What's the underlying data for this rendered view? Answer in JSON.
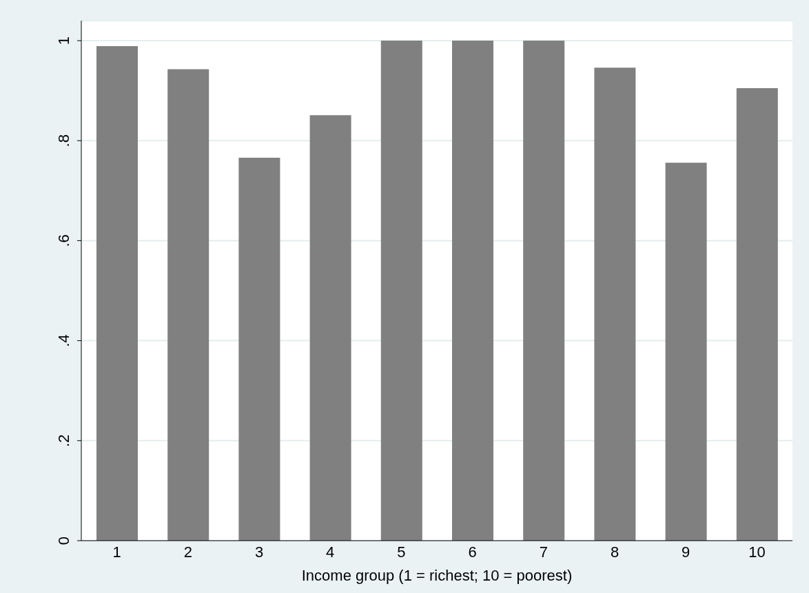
{
  "chart_data": {
    "type": "bar",
    "xlabel": "Income group (1 = richest; 10 = poorest)",
    "categories": [
      "1",
      "2",
      "3",
      "4",
      "5",
      "6",
      "7",
      "8",
      "9",
      "10"
    ],
    "values": [
      0.989,
      0.943,
      0.766,
      0.851,
      1,
      1,
      1,
      0.946,
      0.756,
      0.905
    ],
    "color": "#808080",
    "ylim": [
      0,
      1.04
    ],
    "yticks": [
      0,
      {
        "value": 0.2,
        "label": ".2"
      },
      {
        "value": 0.4,
        "label": ".4"
      },
      {
        "value": 0.6,
        "label": ".6"
      },
      {
        "value": 0.8,
        "label": ".8"
      },
      1
    ],
    "grid": "y"
  }
}
